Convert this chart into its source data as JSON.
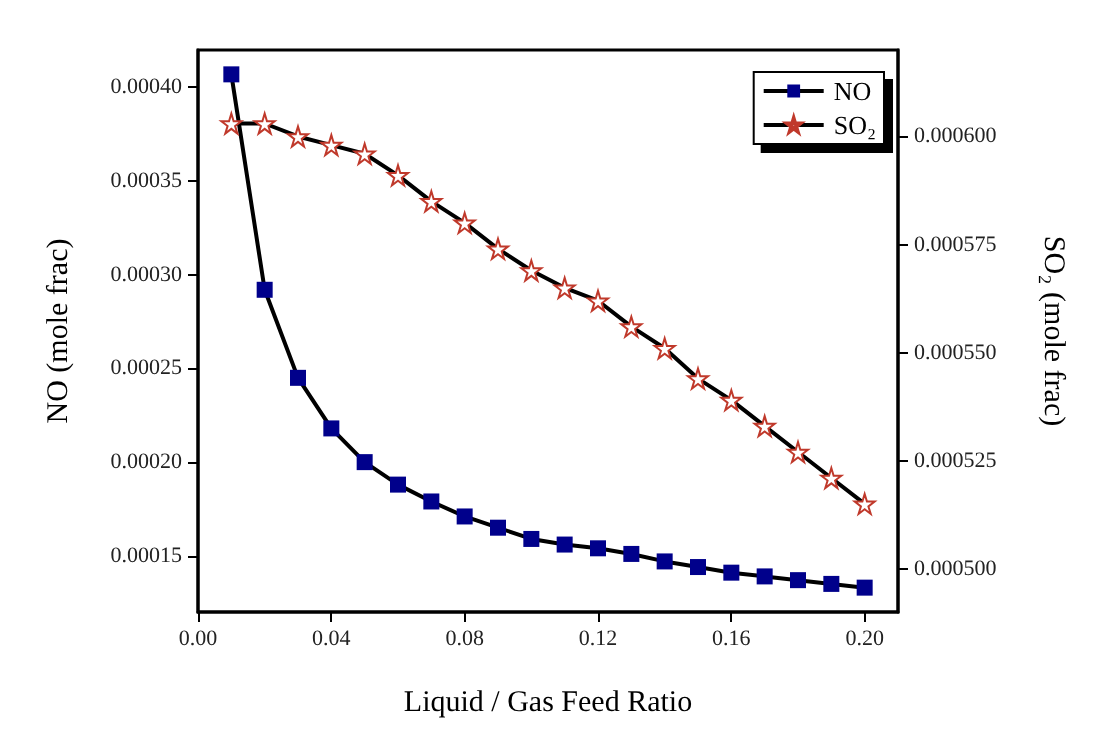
{
  "chart_data": {
    "type": "line",
    "xlabel": "Liquid / Gas Feed Ratio",
    "ylabel": "NO (mole frac)",
    "y2label": "SO₂ (mole frac)",
    "x": [
      0.01,
      0.02,
      0.03,
      0.04,
      0.05,
      0.06,
      0.07,
      0.08,
      0.09,
      0.1,
      0.11,
      0.12,
      0.13,
      0.14,
      0.15,
      0.16,
      0.17,
      0.18,
      0.19,
      0.2
    ],
    "series": [
      {
        "name": "NO",
        "color": "#00008b",
        "marker": "square",
        "values": [
          0.000407,
          0.000292,
          0.000245,
          0.000218,
          0.0002,
          0.000188,
          0.000179,
          0.000171,
          0.000165,
          0.000159,
          0.000156,
          0.000154,
          0.000151,
          0.000147,
          0.000144,
          0.000141,
          0.000139,
          0.000137,
          0.000135,
          0.000133
        ]
      },
      {
        "name": "SO₂",
        "color": "#c0392b",
        "marker": "star",
        "axis": "y2",
        "values": [
          0.000603,
          0.000603,
          0.0006,
          0.000598,
          0.000596,
          0.000591,
          0.000585,
          0.00058,
          0.000574,
          0.000569,
          0.000565,
          0.000562,
          0.000556,
          0.000551,
          0.000544,
          0.000539,
          0.000533,
          0.000527,
          0.000521,
          0.000515
        ]
      }
    ],
    "xlim": [
      0,
      0.21
    ],
    "xticks": [
      {
        "value": 0,
        "label": "0.00"
      },
      {
        "value": 0.04,
        "label": "0.04"
      },
      {
        "value": 0.08,
        "label": "0.08"
      },
      {
        "value": 0.12,
        "label": "0.12"
      },
      {
        "value": 0.16,
        "label": "0.16"
      },
      {
        "value": 0.2,
        "label": "0.20"
      }
    ],
    "ylim": [
      0.00012,
      0.00042
    ],
    "yticks": [
      {
        "value": 0.00015,
        "label": "0.00015"
      },
      {
        "value": 0.0002,
        "label": "0.00020"
      },
      {
        "value": 0.00025,
        "label": "0.00025"
      },
      {
        "value": 0.0003,
        "label": "0.00030"
      },
      {
        "value": 0.00035,
        "label": "0.00035"
      },
      {
        "value": 0.0004,
        "label": "0.00040"
      }
    ],
    "y2lim": [
      0.00049,
      0.00062
    ],
    "y2ticks": [
      {
        "value": 0.0005,
        "label": "0.000500"
      },
      {
        "value": 0.000525,
        "label": "0.000525"
      },
      {
        "value": 0.00055,
        "label": "0.000550"
      },
      {
        "value": 0.000575,
        "label": "0.000575"
      },
      {
        "value": 0.0006,
        "label": "0.000600"
      }
    ],
    "legend": "top right",
    "grid": false,
    "line_style": "solid"
  }
}
